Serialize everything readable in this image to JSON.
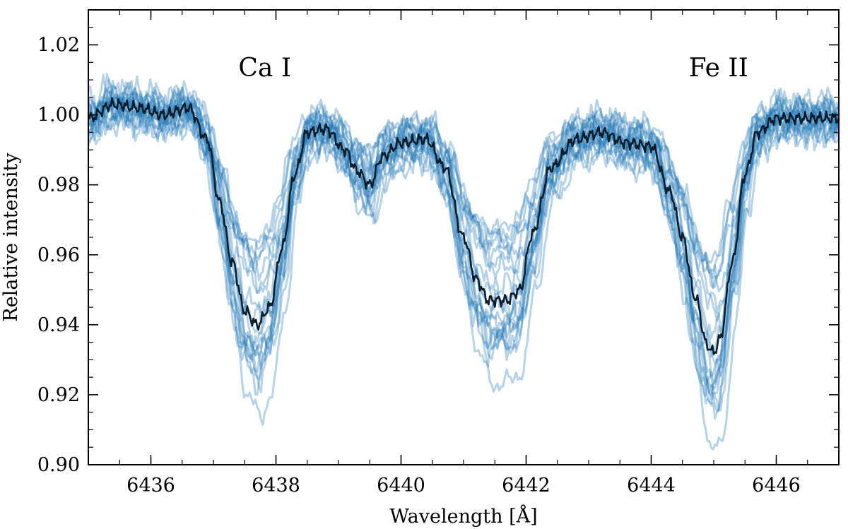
{
  "chart_data": {
    "type": "line",
    "title": "",
    "xlabel": "Wavelength [Å]",
    "ylabel": "Relative intensity",
    "xlim": [
      6435.0,
      6447.0
    ],
    "ylim": [
      0.9,
      1.03
    ],
    "xticks": [
      6436,
      6438,
      6440,
      6442,
      6444,
      6446
    ],
    "xtick_labels": [
      "6436",
      "6438",
      "6440",
      "6442",
      "6444",
      "6446"
    ],
    "yticks": [
      0.9,
      0.92,
      0.94,
      0.96,
      0.98,
      1.0,
      1.02
    ],
    "ytick_labels": [
      "0.90",
      "0.92",
      "0.94",
      "0.96",
      "0.98",
      "1.00",
      "1.02"
    ],
    "grid": false,
    "annotations": [
      {
        "text": "Ca I",
        "x": 6437.4,
        "y": 1.011
      },
      {
        "text": "Fe II",
        "x": 6444.6,
        "y": 1.011
      }
    ],
    "individual_spectra_count": 20,
    "individual_color": "#1f77b4",
    "mean_color": "#0a1d2c",
    "mean_spectrum": {
      "x": [
        6435.0,
        6435.4,
        6435.8,
        6436.2,
        6436.6,
        6436.9,
        6437.1,
        6437.3,
        6437.5,
        6437.7,
        6437.9,
        6438.1,
        6438.3,
        6438.5,
        6438.8,
        6439.1,
        6439.3,
        6439.5,
        6439.7,
        6440.0,
        6440.4,
        6440.7,
        6441.0,
        6441.2,
        6441.4,
        6441.7,
        6441.9,
        6442.1,
        6442.4,
        6442.8,
        6443.2,
        6443.6,
        6444.0,
        6444.3,
        6444.5,
        6444.7,
        6444.9,
        6445.0,
        6445.1,
        6445.3,
        6445.5,
        6445.7,
        6446.0,
        6446.5,
        6447.0
      ],
      "y": [
        0.999,
        1.003,
        1.002,
        1.0,
        1.002,
        0.993,
        0.975,
        0.958,
        0.944,
        0.94,
        0.945,
        0.962,
        0.983,
        0.995,
        0.996,
        0.99,
        0.984,
        0.98,
        0.988,
        0.992,
        0.993,
        0.985,
        0.965,
        0.953,
        0.947,
        0.947,
        0.95,
        0.966,
        0.985,
        0.993,
        0.995,
        0.992,
        0.991,
        0.978,
        0.965,
        0.948,
        0.934,
        0.932,
        0.936,
        0.958,
        0.983,
        0.995,
        0.999,
        0.999,
        0.999
      ]
    }
  }
}
